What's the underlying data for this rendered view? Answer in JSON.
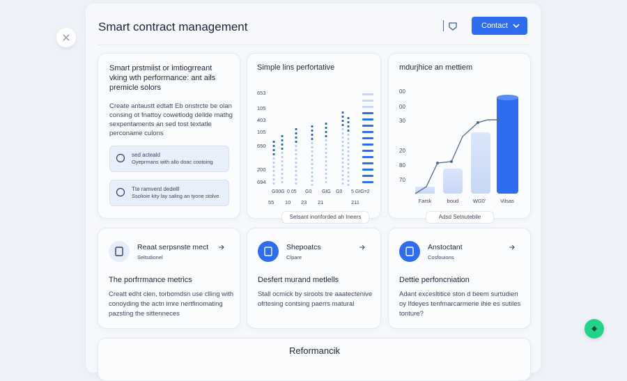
{
  "header": {
    "title": "Smart contract management",
    "button": "Contact"
  },
  "cards": [
    {
      "title": [
        "Smart prstmiist or imtiogrreant",
        "vking wth perforrnance: ant ails",
        "premicle solors"
      ],
      "body": [
        "Create antaustt edtatt Eb onstrcte be olan",
        "consing ot fnattoy cowetlodg delide mathg",
        "sexpentaments an sed tost textatle",
        "perconame culons"
      ],
      "notes": [
        {
          "title": "sed acteald",
          "text": "Oyeprmans with allo doac cootoing"
        },
        {
          "title": "Tte ramverd dedelll",
          "text": "Ssolioie kity lay saling an tyone stolve"
        }
      ]
    },
    {
      "title": "Simple lins perfortative",
      "y_labels": [
        "653",
        "105",
        "403",
        "105",
        "650",
        "200",
        "694"
      ],
      "top_labels": [
        "G00G",
        "0 05",
        "G0",
        "GIG",
        "G0",
        "5 GIG=2"
      ],
      "x_labels": [
        "55",
        "10",
        "23",
        "21",
        "211"
      ],
      "caption": "Setsant inonforded ah Ineers"
    },
    {
      "title": "mdurjhice an mettiem",
      "y_labels": [
        "00",
        "00",
        "30",
        "20",
        "80",
        "70"
      ],
      "x_labels": [
        "Farsk",
        "boud",
        "WG0'",
        "Vilsas"
      ],
      "caption": "Adsd Setnutebile"
    }
  ],
  "features": [
    {
      "title": "Reaat serpsnste mect",
      "subtitle": "Seltsdionel",
      "heading": "The porfrrmance metrics",
      "body": [
        "Creatt edht clen, torbomdsn use clling with",
        "conoyding the actn imre nertfinomating",
        "pazsting the sittenneces"
      ]
    },
    {
      "title": "Shepoatcs",
      "subtitle": "Clpare",
      "heading": "Desfert murand metlells",
      "body": [
        "Stall ocmick by siroots tre aaatectenive",
        "ofrtesing contsing paerrs matural"
      ]
    },
    {
      "title": "Anstoctant",
      "subtitle": "Cosfouions",
      "heading": "Dettie perfoncniation",
      "body": [
        "Adant excesltitice ston d beem surtudien",
        "oy lfdeyes tenfmarcarmerie ihie es sutiles",
        "tonture?"
      ]
    }
  ],
  "footer": {
    "title": "Reformancik"
  }
}
